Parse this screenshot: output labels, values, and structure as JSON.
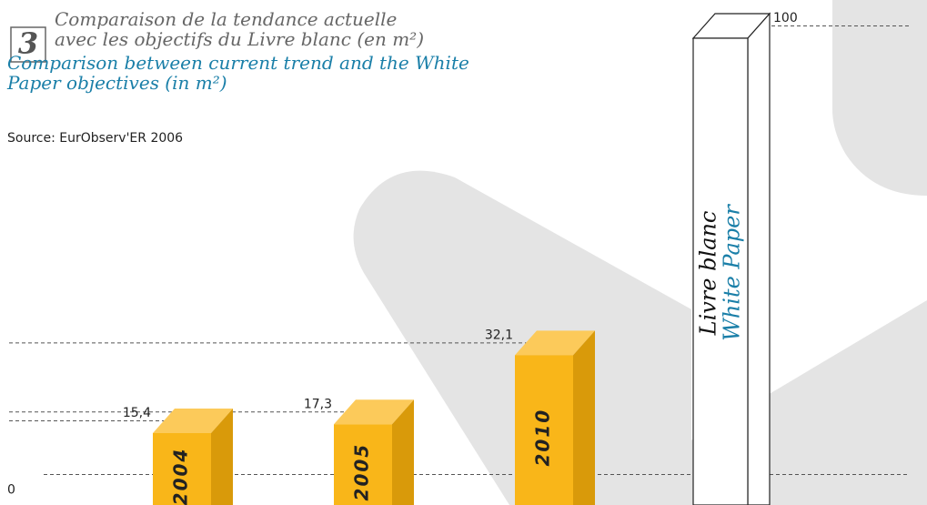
{
  "chart_data": {
    "type": "bar3d",
    "number": "3",
    "title_fr": [
      "Comparaison de la tendance actuelle",
      "avec les objectifs du Livre blanc (en m²)"
    ],
    "title_en": [
      "Comparison between current trend and the White",
      "Paper objectives (in m²)"
    ],
    "source": "Source: EurObserv'ER 2006",
    "categories": [
      "2004",
      "2005",
      "2010",
      {
        "fr": "Livre blanc",
        "en": "White Paper"
      }
    ],
    "values": [
      15.4,
      17.3,
      32.1,
      100
    ],
    "value_labels": [
      "15,4",
      "17,3",
      "32,1",
      "100"
    ],
    "colors": [
      "#f9b619",
      "#f9b619",
      "#f9b619",
      "#ffffff"
    ],
    "ylim": [
      0,
      100
    ],
    "yticks": [
      0
    ]
  }
}
